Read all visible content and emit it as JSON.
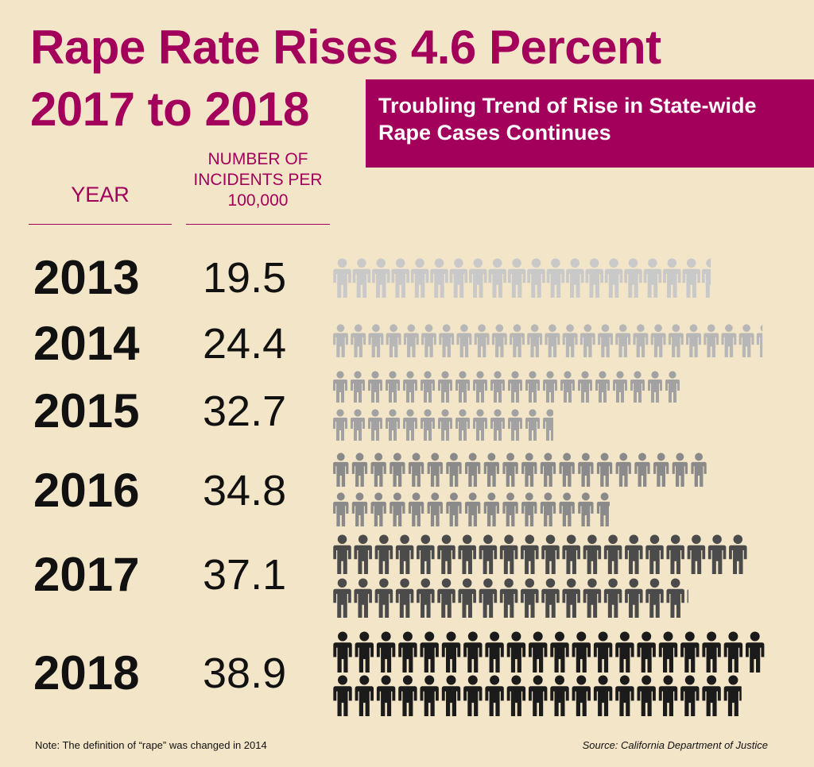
{
  "title_line1": "Rape Rate Rises 4.6 Percent",
  "title_line2": "2017 to 2018",
  "subtitle": "Troubling Trend of Rise in State-wide Rape Cases Continues",
  "column_headers": {
    "year": "YEAR",
    "value": "NUMBER OF INCIDENTS PER 100,000"
  },
  "chart_data": {
    "type": "bar",
    "style": "pictogram (one person icon per incident per 100,000)",
    "categories": [
      "2013",
      "2014",
      "2015",
      "2016",
      "2017",
      "2018"
    ],
    "values": [
      19.5,
      24.4,
      32.7,
      34.8,
      37.1,
      38.9
    ],
    "value_labels": [
      "19.5",
      "24.4",
      "32.7",
      "34.8",
      "37.1",
      "38.9"
    ],
    "colors": [
      "#c9c9c9",
      "#b7b7b7",
      "#a2a2a2",
      "#8a8a8a",
      "#4b4b4b",
      "#1b1b1b"
    ]
  },
  "note": "Note: The definition of “rape” was changed in 2014",
  "source": "Source: California Department of Justice",
  "colors": {
    "accent": "#a3005c",
    "background": "#f3e5c8"
  }
}
